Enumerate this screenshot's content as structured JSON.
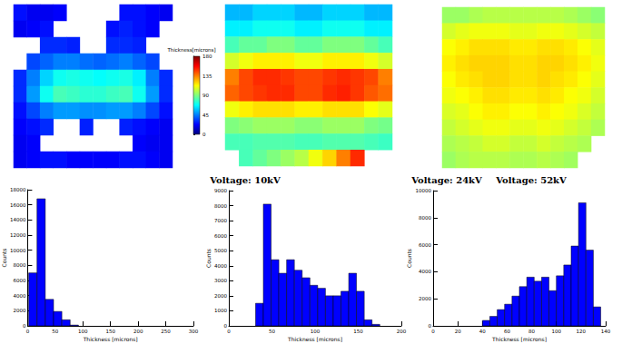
{
  "chart_data": [
    {
      "type": "heatmap",
      "title": "Voltage: 10kV",
      "tick_labels": false,
      "colorbar": {
        "label": "Thickness[microns]",
        "range": [
          0,
          180
        ],
        "ticks": [
          0,
          45,
          90,
          135,
          180
        ]
      },
      "cells": [
        [
          25,
          20,
          20,
          22,
          null,
          null,
          null,
          null,
          25,
          25,
          22,
          20
        ],
        [
          20,
          22,
          25,
          null,
          null,
          null,
          null,
          25,
          28,
          25,
          22,
          null
        ],
        [
          null,
          null,
          30,
          30,
          28,
          null,
          null,
          30,
          30,
          28,
          null,
          null
        ],
        [
          null,
          35,
          40,
          45,
          45,
          42,
          40,
          42,
          45,
          40,
          35,
          null
        ],
        [
          30,
          45,
          60,
          70,
          72,
          70,
          68,
          70,
          72,
          65,
          45,
          30
        ],
        [
          30,
          50,
          70,
          80,
          78,
          75,
          75,
          78,
          80,
          70,
          50,
          30
        ],
        [
          25,
          35,
          45,
          50,
          50,
          48,
          48,
          50,
          50,
          45,
          35,
          25
        ],
        [
          22,
          25,
          30,
          null,
          null,
          28,
          null,
          null,
          28,
          25,
          22,
          20
        ],
        [
          20,
          22,
          null,
          null,
          null,
          null,
          null,
          null,
          null,
          22,
          20,
          20
        ],
        [
          20,
          22,
          25,
          25,
          22,
          22,
          22,
          22,
          25,
          25,
          22,
          20
        ]
      ]
    },
    {
      "type": "heatmap",
      "title": "Voltage: 24kV",
      "tick_labels": false,
      "cells": [
        [
          55,
          55,
          60,
          60,
          60,
          55,
          55,
          60,
          60,
          60,
          55,
          55
        ],
        [
          65,
          65,
          70,
          70,
          70,
          65,
          65,
          70,
          70,
          70,
          65,
          65
        ],
        [
          80,
          85,
          85,
          90,
          90,
          85,
          85,
          90,
          90,
          90,
          85,
          80
        ],
        [
          105,
          110,
          115,
          115,
          115,
          110,
          110,
          115,
          115,
          115,
          110,
          105
        ],
        [
          135,
          145,
          150,
          150,
          148,
          145,
          145,
          148,
          150,
          148,
          145,
          135
        ],
        [
          140,
          145,
          148,
          150,
          150,
          145,
          145,
          150,
          152,
          148,
          142,
          138
        ],
        [
          110,
          115,
          118,
          118,
          118,
          115,
          115,
          118,
          118,
          118,
          112,
          108
        ],
        [
          90,
          92,
          95,
          95,
          95,
          92,
          92,
          95,
          95,
          95,
          90,
          88
        ],
        [
          80,
          80,
          82,
          82,
          82,
          80,
          80,
          82,
          82,
          82,
          80,
          78
        ],
        [
          null,
          80,
          85,
          90,
          95,
          100,
          110,
          120,
          135,
          150,
          null,
          null
        ]
      ]
    },
    {
      "type": "heatmap",
      "title": "Voltage: 52kV",
      "tick_labels": false,
      "cells": [
        [
          95,
          95,
          98,
          100,
          100,
          100,
          100,
          100,
          100,
          98,
          95,
          92
        ],
        [
          105,
          108,
          110,
          110,
          110,
          108,
          108,
          110,
          110,
          108,
          105,
          102
        ],
        [
          112,
          115,
          118,
          118,
          118,
          116,
          116,
          118,
          118,
          116,
          112,
          108
        ],
        [
          115,
          118,
          120,
          120,
          120,
          118,
          118,
          120,
          120,
          118,
          115,
          110
        ],
        [
          112,
          116,
          118,
          120,
          120,
          118,
          118,
          120,
          118,
          116,
          112,
          108
        ],
        [
          110,
          112,
          115,
          118,
          118,
          116,
          116,
          118,
          116,
          112,
          110,
          105
        ],
        [
          106,
          108,
          112,
          115,
          115,
          112,
          112,
          115,
          112,
          110,
          106,
          102
        ],
        [
          102,
          105,
          108,
          110,
          110,
          108,
          108,
          110,
          108,
          105,
          102,
          98
        ],
        [
          98,
          100,
          102,
          105,
          105,
          102,
          102,
          105,
          102,
          100,
          98,
          null
        ],
        [
          95,
          98,
          100,
          100,
          100,
          98,
          98,
          100,
          98,
          96,
          null,
          null
        ]
      ]
    },
    {
      "type": "histogram",
      "xlabel": "Thickness [microns]",
      "ylabel": "Counts",
      "color": "#0000ff",
      "bins": [
        2,
        17,
        32,
        47,
        62,
        77,
        92
      ],
      "counts": [
        7000,
        16800,
        3500,
        1900,
        800,
        100
      ],
      "xlim": [
        0,
        300
      ],
      "xticks": [
        0,
        50,
        100,
        150,
        200,
        250,
        300
      ],
      "ylim": [
        0,
        18000
      ],
      "yticks": [
        0,
        2000,
        4000,
        6000,
        8000,
        10000,
        12000,
        14000,
        16000,
        18000
      ]
    },
    {
      "type": "histogram",
      "xlabel": "Thickness [microns]",
      "ylabel": "Counts",
      "color": "#0000ff",
      "bins": [
        31,
        40,
        49,
        58,
        67,
        76,
        85,
        94,
        103,
        112,
        121,
        130,
        139,
        148,
        157,
        166,
        175
      ],
      "counts": [
        1500,
        8100,
        4400,
        3500,
        4400,
        3700,
        3200,
        2700,
        2500,
        2000,
        2000,
        2300,
        3500,
        2300,
        400,
        100
      ],
      "xlim": [
        0,
        200
      ],
      "xticks": [
        0,
        50,
        100,
        150,
        200
      ],
      "ylim": [
        0,
        9000
      ],
      "yticks": [
        0,
        1000,
        2000,
        3000,
        4000,
        5000,
        6000,
        7000,
        8000,
        9000
      ]
    },
    {
      "type": "histogram",
      "xlabel": "Thickness [microns]",
      "ylabel": "Counts",
      "color": "#0000ff",
      "bins": [
        40,
        46,
        52,
        58,
        64,
        70,
        76,
        82,
        88,
        94,
        100,
        106,
        112,
        118,
        124,
        130,
        136
      ],
      "counts": [
        400,
        700,
        1200,
        1600,
        2200,
        2900,
        3600,
        3300,
        3600,
        2600,
        3700,
        4500,
        5900,
        9100,
        5600,
        1400
      ],
      "xlim": [
        0,
        140
      ],
      "xticks": [
        0,
        20,
        40,
        60,
        80,
        100,
        120,
        140
      ],
      "ylim": [
        0,
        10000
      ],
      "yticks": [
        0,
        2000,
        4000,
        6000,
        8000,
        10000
      ]
    }
  ]
}
